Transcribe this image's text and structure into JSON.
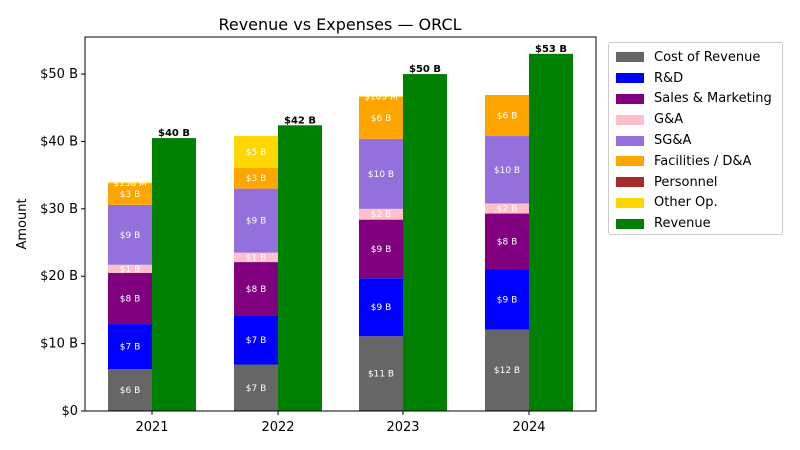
{
  "chart_data": {
    "type": "bar",
    "title": "Revenue vs Expenses — ORCL",
    "xlabel": "",
    "ylabel": "Amount",
    "categories": [
      "2021",
      "2022",
      "2023",
      "2024"
    ],
    "ylim": [
      0,
      55.5
    ],
    "yticks": [
      0,
      10,
      20,
      30,
      40,
      50
    ],
    "ytick_labels": [
      "$0",
      "$10 B",
      "$20 B",
      "$30 B",
      "$40 B",
      "$50 B"
    ],
    "legend_position": "outside-top-right",
    "stacked_series": [
      {
        "name": "Cost of Revenue",
        "color": "#666666",
        "values": [
          6.2,
          6.9,
          11.1,
          12.1
        ],
        "labels": [
          "$6 B",
          "$7 B",
          "$11 B",
          "$12 B"
        ]
      },
      {
        "name": "R&D",
        "color": "#0000ff",
        "values": [
          6.7,
          7.2,
          8.6,
          8.9
        ],
        "labels": [
          "$7 B",
          "$7 B",
          "$9 B",
          "$9 B"
        ]
      },
      {
        "name": "Sales & Marketing",
        "color": "#800080",
        "values": [
          7.6,
          8.0,
          8.7,
          8.3
        ],
        "labels": [
          "$8 B",
          "$8 B",
          "$9 B",
          "$8 B"
        ]
      },
      {
        "name": "G&A",
        "color": "#ffc0cb",
        "values": [
          1.2,
          1.4,
          1.6,
          1.5
        ],
        "labels": [
          "$1 B",
          "$1 B",
          "$2 B",
          "$2 B"
        ]
      },
      {
        "name": "SG&A",
        "color": "#9370db",
        "values": [
          8.9,
          9.5,
          10.4,
          10.0
        ],
        "labels": [
          "$9 B",
          "$9 B",
          "$10 B",
          "$10 B"
        ]
      },
      {
        "name": "Facilities / D&A",
        "color": "#ffa500",
        "values": [
          3.2,
          3.1,
          6.2,
          6.1
        ],
        "labels": [
          "$3 B",
          "$3 B",
          "$6 B",
          "$6 B"
        ]
      },
      {
        "name": "Personnel",
        "color": "#a52a2a",
        "values": [
          0,
          0,
          0,
          0
        ],
        "labels": [
          "",
          "",
          "",
          ""
        ]
      },
      {
        "name": "Other Op.",
        "color": "#ffd700",
        "values": [
          0.14,
          4.7,
          0.1,
          0
        ],
        "labels": [
          "$138 M",
          "$5 B",
          "$105 M",
          ""
        ]
      }
    ],
    "revenue_series": {
      "name": "Revenue",
      "color": "#008000",
      "values": [
        40.5,
        42.4,
        50.0,
        53.0
      ],
      "labels": [
        "$40 B",
        "$42 B",
        "$50 B",
        "$53 B"
      ]
    }
  }
}
